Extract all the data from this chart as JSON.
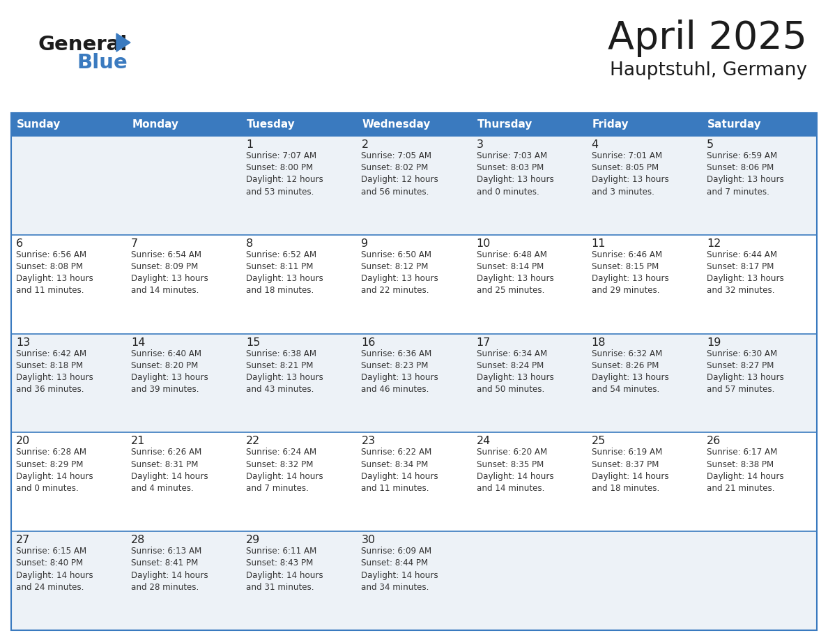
{
  "title": "April 2025",
  "subtitle": "Hauptstuhl, Germany",
  "header_bg": "#3a7abf",
  "header_text_color": "#ffffff",
  "cell_bg_light": "#edf2f7",
  "cell_bg_white": "#ffffff",
  "border_color": "#3a7abf",
  "text_color": "#222222",
  "info_color": "#333333",
  "days_of_week": [
    "Sunday",
    "Monday",
    "Tuesday",
    "Wednesday",
    "Thursday",
    "Friday",
    "Saturday"
  ],
  "calendar": [
    [
      {
        "day": "",
        "info": ""
      },
      {
        "day": "",
        "info": ""
      },
      {
        "day": "1",
        "info": "Sunrise: 7:07 AM\nSunset: 8:00 PM\nDaylight: 12 hours\nand 53 minutes."
      },
      {
        "day": "2",
        "info": "Sunrise: 7:05 AM\nSunset: 8:02 PM\nDaylight: 12 hours\nand 56 minutes."
      },
      {
        "day": "3",
        "info": "Sunrise: 7:03 AM\nSunset: 8:03 PM\nDaylight: 13 hours\nand 0 minutes."
      },
      {
        "day": "4",
        "info": "Sunrise: 7:01 AM\nSunset: 8:05 PM\nDaylight: 13 hours\nand 3 minutes."
      },
      {
        "day": "5",
        "info": "Sunrise: 6:59 AM\nSunset: 8:06 PM\nDaylight: 13 hours\nand 7 minutes."
      }
    ],
    [
      {
        "day": "6",
        "info": "Sunrise: 6:56 AM\nSunset: 8:08 PM\nDaylight: 13 hours\nand 11 minutes."
      },
      {
        "day": "7",
        "info": "Sunrise: 6:54 AM\nSunset: 8:09 PM\nDaylight: 13 hours\nand 14 minutes."
      },
      {
        "day": "8",
        "info": "Sunrise: 6:52 AM\nSunset: 8:11 PM\nDaylight: 13 hours\nand 18 minutes."
      },
      {
        "day": "9",
        "info": "Sunrise: 6:50 AM\nSunset: 8:12 PM\nDaylight: 13 hours\nand 22 minutes."
      },
      {
        "day": "10",
        "info": "Sunrise: 6:48 AM\nSunset: 8:14 PM\nDaylight: 13 hours\nand 25 minutes."
      },
      {
        "day": "11",
        "info": "Sunrise: 6:46 AM\nSunset: 8:15 PM\nDaylight: 13 hours\nand 29 minutes."
      },
      {
        "day": "12",
        "info": "Sunrise: 6:44 AM\nSunset: 8:17 PM\nDaylight: 13 hours\nand 32 minutes."
      }
    ],
    [
      {
        "day": "13",
        "info": "Sunrise: 6:42 AM\nSunset: 8:18 PM\nDaylight: 13 hours\nand 36 minutes."
      },
      {
        "day": "14",
        "info": "Sunrise: 6:40 AM\nSunset: 8:20 PM\nDaylight: 13 hours\nand 39 minutes."
      },
      {
        "day": "15",
        "info": "Sunrise: 6:38 AM\nSunset: 8:21 PM\nDaylight: 13 hours\nand 43 minutes."
      },
      {
        "day": "16",
        "info": "Sunrise: 6:36 AM\nSunset: 8:23 PM\nDaylight: 13 hours\nand 46 minutes."
      },
      {
        "day": "17",
        "info": "Sunrise: 6:34 AM\nSunset: 8:24 PM\nDaylight: 13 hours\nand 50 minutes."
      },
      {
        "day": "18",
        "info": "Sunrise: 6:32 AM\nSunset: 8:26 PM\nDaylight: 13 hours\nand 54 minutes."
      },
      {
        "day": "19",
        "info": "Sunrise: 6:30 AM\nSunset: 8:27 PM\nDaylight: 13 hours\nand 57 minutes."
      }
    ],
    [
      {
        "day": "20",
        "info": "Sunrise: 6:28 AM\nSunset: 8:29 PM\nDaylight: 14 hours\nand 0 minutes."
      },
      {
        "day": "21",
        "info": "Sunrise: 6:26 AM\nSunset: 8:31 PM\nDaylight: 14 hours\nand 4 minutes."
      },
      {
        "day": "22",
        "info": "Sunrise: 6:24 AM\nSunset: 8:32 PM\nDaylight: 14 hours\nand 7 minutes."
      },
      {
        "day": "23",
        "info": "Sunrise: 6:22 AM\nSunset: 8:34 PM\nDaylight: 14 hours\nand 11 minutes."
      },
      {
        "day": "24",
        "info": "Sunrise: 6:20 AM\nSunset: 8:35 PM\nDaylight: 14 hours\nand 14 minutes."
      },
      {
        "day": "25",
        "info": "Sunrise: 6:19 AM\nSunset: 8:37 PM\nDaylight: 14 hours\nand 18 minutes."
      },
      {
        "day": "26",
        "info": "Sunrise: 6:17 AM\nSunset: 8:38 PM\nDaylight: 14 hours\nand 21 minutes."
      }
    ],
    [
      {
        "day": "27",
        "info": "Sunrise: 6:15 AM\nSunset: 8:40 PM\nDaylight: 14 hours\nand 24 minutes."
      },
      {
        "day": "28",
        "info": "Sunrise: 6:13 AM\nSunset: 8:41 PM\nDaylight: 14 hours\nand 28 minutes."
      },
      {
        "day": "29",
        "info": "Sunrise: 6:11 AM\nSunset: 8:43 PM\nDaylight: 14 hours\nand 31 minutes."
      },
      {
        "day": "30",
        "info": "Sunrise: 6:09 AM\nSunset: 8:44 PM\nDaylight: 14 hours\nand 34 minutes."
      },
      {
        "day": "",
        "info": ""
      },
      {
        "day": "",
        "info": ""
      },
      {
        "day": "",
        "info": ""
      }
    ]
  ],
  "fig_width": 11.88,
  "fig_height": 9.18,
  "dpi": 100
}
